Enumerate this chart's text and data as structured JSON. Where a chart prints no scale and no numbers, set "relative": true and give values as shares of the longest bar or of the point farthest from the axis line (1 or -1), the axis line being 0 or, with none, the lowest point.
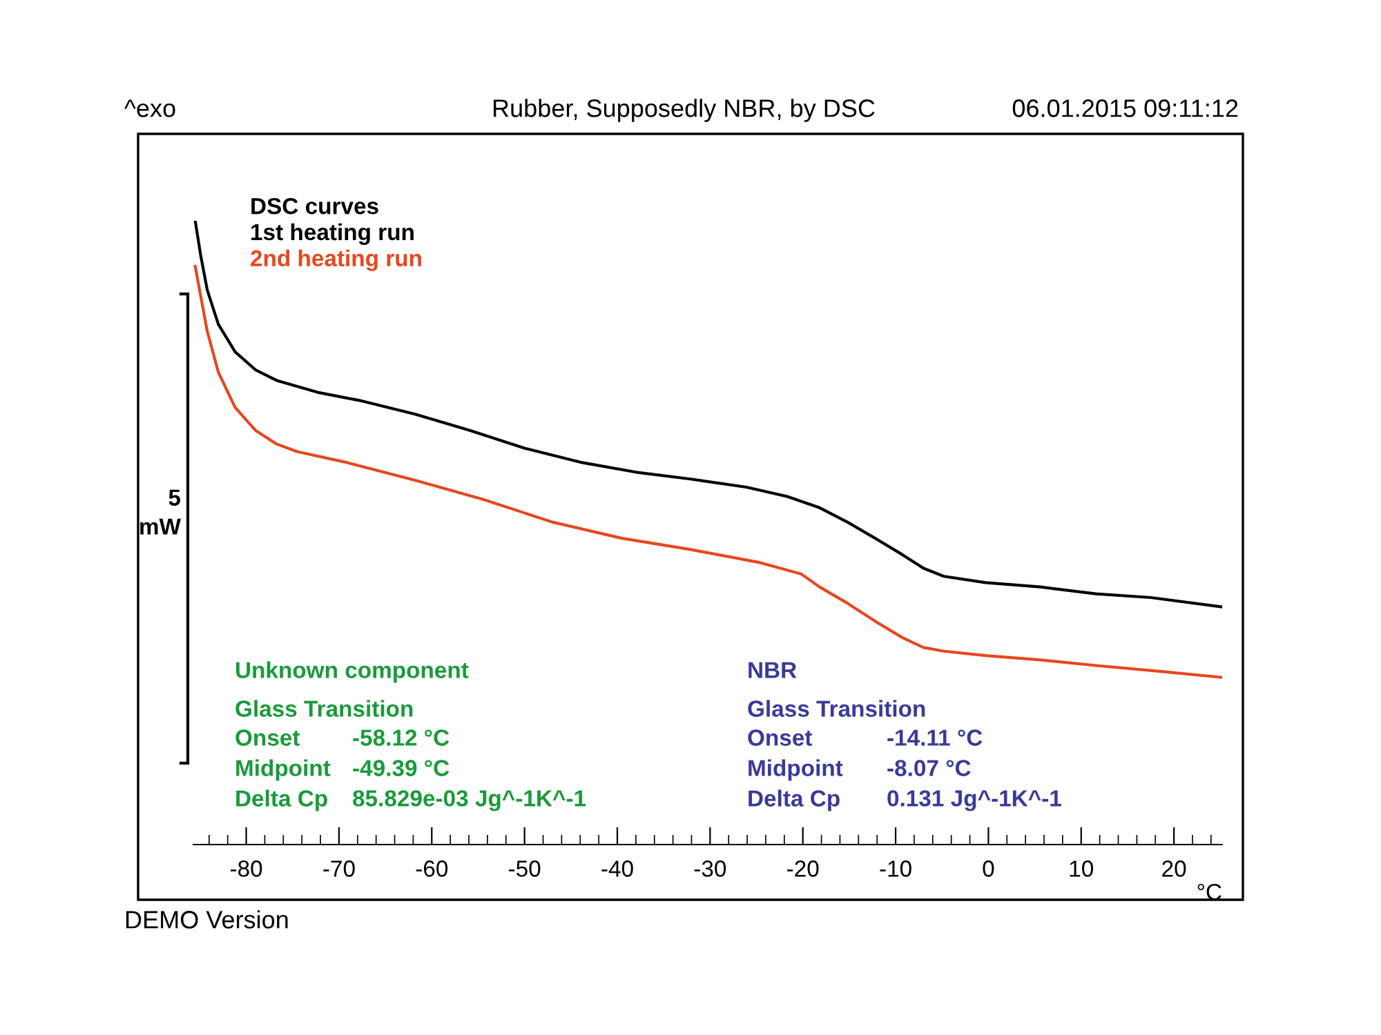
{
  "chart_data": {
    "type": "line",
    "title": "Rubber, Supposedly NBR, by DSC",
    "xlabel": "°C",
    "ylabel": "5 mW",
    "legend_title": "DSC curves",
    "relative": true,
    "legend": "top left",
    "xlim": [
      -85.7,
      25.2
    ],
    "xticks": [
      -80,
      -70,
      -60,
      -50,
      -40,
      -30,
      -20,
      -10,
      0,
      10,
      20
    ],
    "series": [
      {
        "name": "1st heating run",
        "color": "#000000",
        "x": [
          -85.5,
          -84.9,
          -84.2,
          -83.0,
          -81.2,
          -79.0,
          -76.7,
          -72.3,
          -67.8,
          -61.8,
          -55.9,
          -49.9,
          -44.0,
          -38.0,
          -32.1,
          -26.1,
          -21.7,
          -18.2,
          -15.2,
          -12.2,
          -9.3,
          -7.0,
          -4.8,
          -0.3,
          5.6,
          11.6,
          17.5,
          25.2
        ],
        "values": [
          1.0,
          0.944,
          0.889,
          0.834,
          0.79,
          0.761,
          0.744,
          0.725,
          0.712,
          0.69,
          0.664,
          0.635,
          0.613,
          0.597,
          0.586,
          0.573,
          0.558,
          0.54,
          0.517,
          0.491,
          0.465,
          0.443,
          0.43,
          0.42,
          0.413,
          0.402,
          0.396,
          0.381
        ]
      },
      {
        "name": "2nd heating run",
        "color": "#e8461e",
        "x": [
          -85.5,
          -84.9,
          -84.2,
          -83.0,
          -81.2,
          -79.0,
          -76.7,
          -74.5,
          -69.3,
          -61.8,
          -54.4,
          -47.0,
          -39.5,
          -32.1,
          -24.6,
          -20.2,
          -18.2,
          -15.2,
          -12.2,
          -9.3,
          -7.0,
          -4.8,
          -0.3,
          5.6,
          11.6,
          19.0,
          25.2
        ],
        "values": [
          0.927,
          0.879,
          0.823,
          0.757,
          0.701,
          0.664,
          0.642,
          0.63,
          0.613,
          0.584,
          0.553,
          0.517,
          0.491,
          0.473,
          0.452,
          0.434,
          0.413,
          0.387,
          0.358,
          0.332,
          0.316,
          0.31,
          0.303,
          0.296,
          0.287,
          0.277,
          0.268
        ]
      }
    ],
    "annotations": [
      "^exo",
      "06.01.2015 09:11:12",
      "DEMO Version",
      "Unknown component",
      "Glass Transition",
      "Onset",
      "-58.12 °C",
      "Midpoint",
      "-49.39 °C",
      "Delta Cp",
      "85.829e-03 Jg^-1K^-1",
      "NBR",
      "Glass Transition",
      "Onset",
      "-14.11 °C",
      "Midpoint",
      "-8.07 °C",
      "Delta Cp",
      "0.131 Jg^-1K^-1"
    ]
  }
}
